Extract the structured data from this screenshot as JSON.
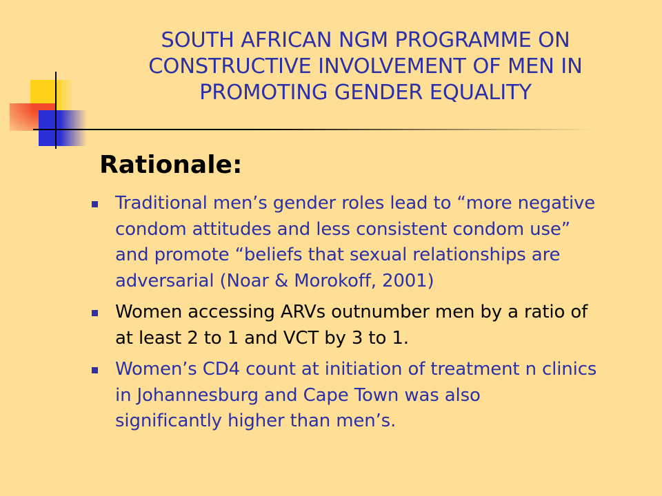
{
  "slide": {
    "title_lines": [
      "SOUTH AFRICAN NGM PROGRAMME ON",
      "CONSTRUCTIVE INVOLVEMENT OF MEN IN",
      "PROMOTING GENDER EQUALITY"
    ],
    "heading": "Rationale:",
    "bullets": [
      {
        "lines": [
          "Traditional men’s gender roles lead to “more negative",
          "condom attitudes and less consistent condom use”",
          "and promote “beliefs that sexual relationships are",
          "adversarial (Noar & Morokoff, 2001)"
        ]
      },
      {
        "lines": [
          "Women accessing ARVs outnumber men by a ratio of",
          "at least 2 to 1 and VCT by 3 to 1."
        ]
      },
      {
        "lines": [
          "Women’s CD4 count at initiation of treatment n clinics",
          "in Johannesburg and Cape Town was also",
          "significantly higher than men’s."
        ]
      }
    ]
  },
  "colors": {
    "background": "#FEDF95",
    "title": "#2B2FA8",
    "heading": "#000000",
    "bullet_text_blue": "#2B2FA8",
    "bullet_text_black": "#000000",
    "bullet_marker": "#2B2FA8",
    "deco_yellow": "#FFD21A",
    "deco_red": "#F24A2B",
    "deco_blue": "#2B2FD6",
    "rule_line": "#000000"
  }
}
